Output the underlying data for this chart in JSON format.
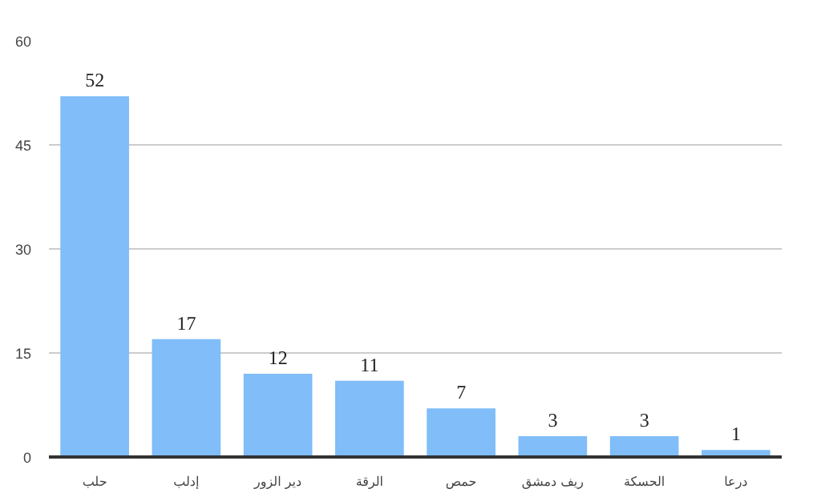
{
  "chart_data": {
    "type": "bar",
    "categories": [
      "حلب",
      "إدلب",
      "دير الزور",
      "الرقة",
      "حمص",
      "ريف دمشق",
      "الحسكة",
      "درعا"
    ],
    "values": [
      52,
      17,
      12,
      11,
      7,
      3,
      3,
      1
    ],
    "color": "#80bdf9",
    "ylim": [
      0,
      60
    ],
    "yticks": [
      0,
      15,
      30,
      45,
      60
    ],
    "grid": "y",
    "data_labels": true
  }
}
